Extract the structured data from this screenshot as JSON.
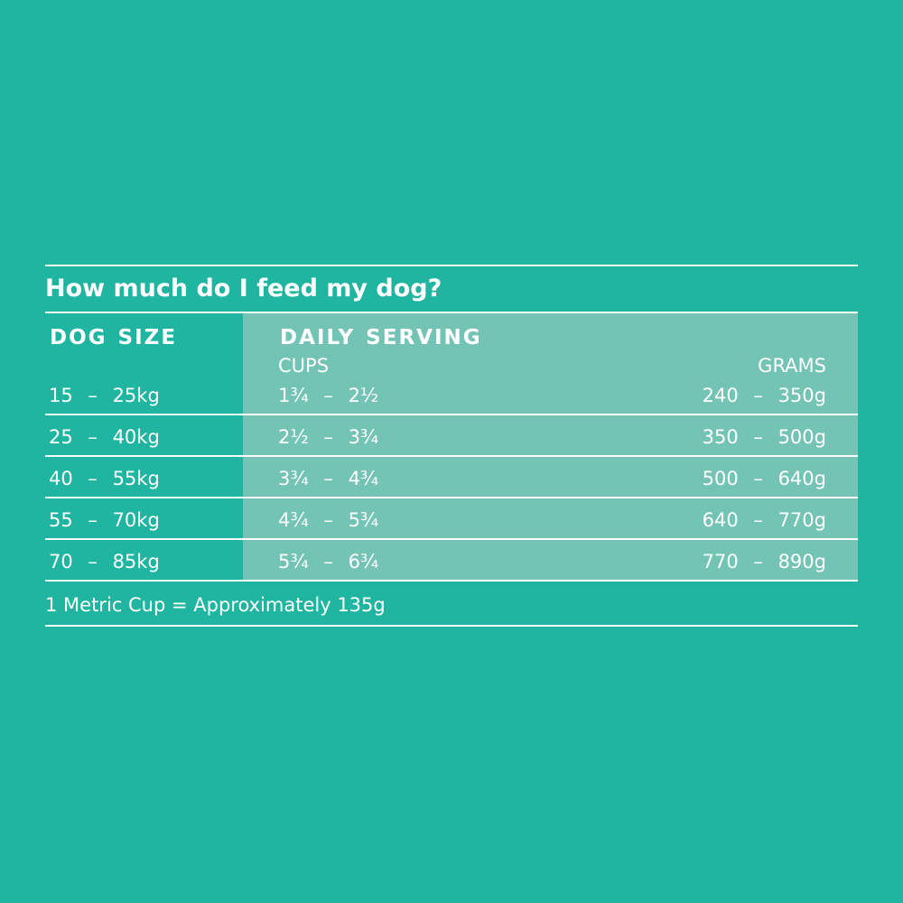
{
  "title": "How much do I feed my dog?",
  "table": {
    "header": {
      "size": "DOG SIZE",
      "serving": "DAILY SERVING",
      "cups": "CUPS",
      "grams": "GRAMS"
    },
    "rows": [
      [
        "15 – 25kg",
        "1¾ – 2½",
        "240 – 350g"
      ],
      [
        "25 – 40kg",
        "2½ – 3¾",
        "350 – 500g"
      ],
      [
        "40 – 55kg",
        "3¾ – 4¾",
        "500 – 640g"
      ],
      [
        "55 – 70kg",
        "4¾ – 5¾",
        "640 – 770g"
      ],
      [
        "70 – 85kg",
        "5¾ – 6¾",
        "770 – 890g"
      ]
    ]
  },
  "footnote": "1 Metric Cup = Approximately 135g"
}
